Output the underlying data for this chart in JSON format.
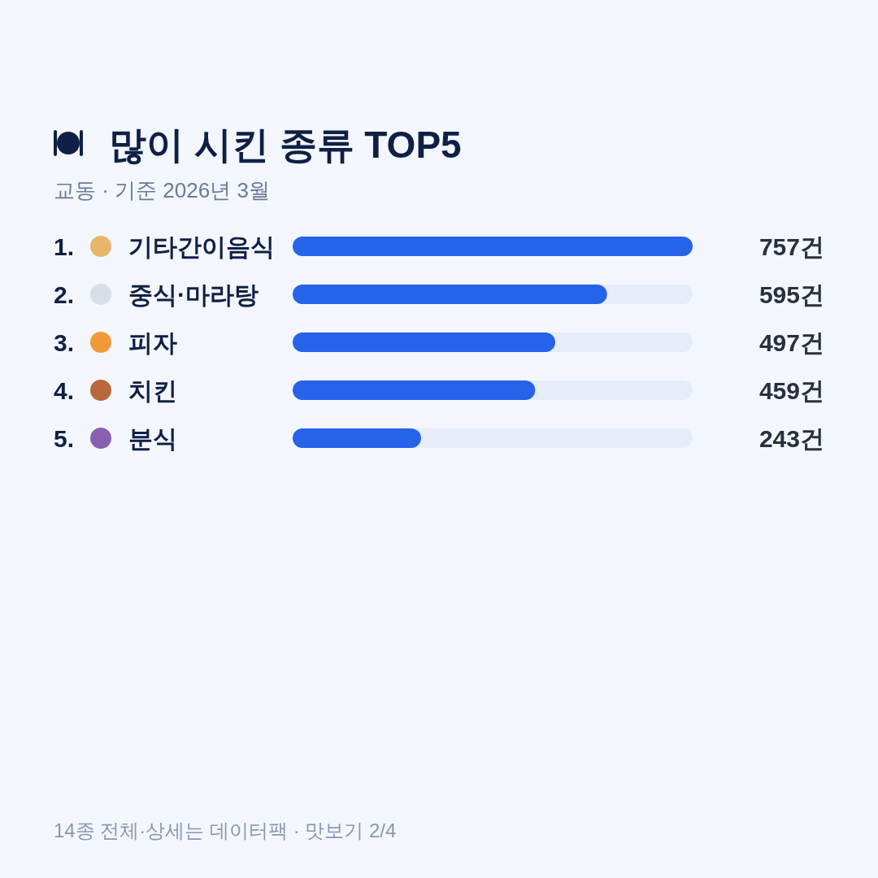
{
  "chart_data": {
    "type": "bar",
    "orientation": "horizontal",
    "title": "많이 시킨 종류 TOP5",
    "subtitle": "교동 · 기준 2026년 3월",
    "categories": [
      "1. 기타간이음식",
      "2. 중식·마라탕",
      "3. 피자",
      "4. 치킨",
      "5. 분식"
    ],
    "values": [
      757,
      595,
      497,
      459,
      243
    ],
    "value_labels": [
      "757건",
      "595건",
      "497건",
      "459건",
      "243건"
    ],
    "color": "#2563eb",
    "xlim": [
      0,
      757
    ],
    "annotations": [
      "14종 전체·상세는 데이터팩 · 맛보기 2/4"
    ]
  }
}
